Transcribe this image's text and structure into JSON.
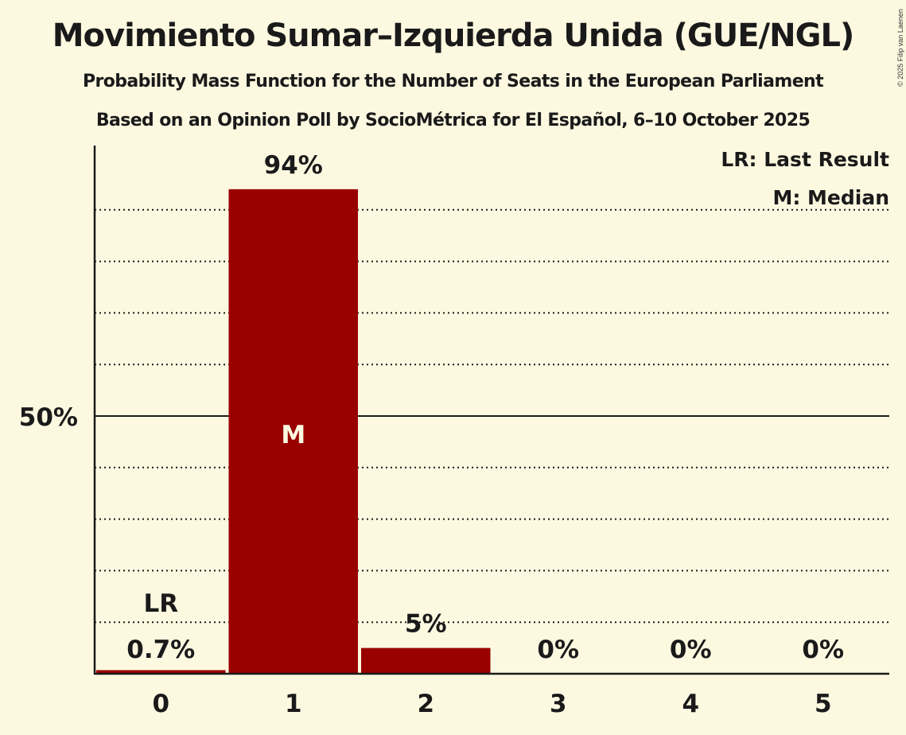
{
  "header": {
    "title": "Movimiento Sumar–Izquierda Unida (GUE/NGL)",
    "subtitle": "Probability Mass Function for the Number of Seats in the European Parliament",
    "source": "Based on an Opinion Poll by SocioMétrica for El Español, 6–10 October 2025",
    "copyright": "© 2025 Filip van Laenen"
  },
  "legend": {
    "last_result": "LR: Last Result",
    "median": "M: Median"
  },
  "colors": {
    "background": "#fdf9e1",
    "bar": "#990000",
    "text": "#1a1a1a"
  },
  "chart_data": {
    "type": "bar",
    "title": "Movimiento Sumar–Izquierda Unida (GUE/NGL)",
    "subtitle": "Probability Mass Function for the Number of Seats in the European Parliament",
    "xlabel": "",
    "ylabel": "",
    "categories": [
      "0",
      "1",
      "2",
      "3",
      "4",
      "5"
    ],
    "values": [
      0.7,
      94,
      5,
      0,
      0,
      0
    ],
    "value_labels": [
      "0.7%",
      "94%",
      "5%",
      "0%",
      "0%",
      "0%"
    ],
    "ylim": [
      0,
      100
    ],
    "yticks": [
      {
        "value": 50,
        "label": "50%"
      }
    ],
    "grid": "dotted every 10%, solid at 50%",
    "annotations": [
      {
        "category": "0",
        "text": "LR",
        "meaning": "Last Result"
      },
      {
        "category": "1",
        "text": "M",
        "meaning": "Median"
      }
    ],
    "legend_position": "top-right"
  }
}
